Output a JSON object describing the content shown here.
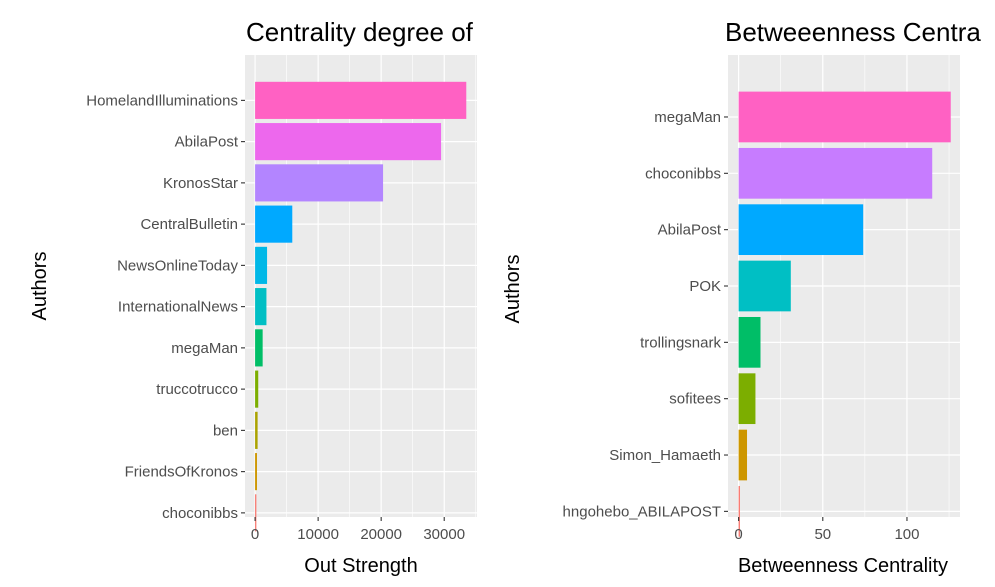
{
  "chart_data": [
    {
      "type": "bar",
      "orientation": "horizontal",
      "title": "Centrality degree of",
      "xlabel": "Out Strength",
      "ylabel": "Authors",
      "categories": [
        "HomelandIlluminations",
        "AbilaPost",
        "KronosStar",
        "CentralBulletin",
        "NewsOnlineToday",
        "InternationalNews",
        "megaMan",
        "truccotrucco",
        "ben",
        "FriendsOfKronos",
        "choconibbs"
      ],
      "values": [
        33500,
        29500,
        20300,
        5900,
        1900,
        1800,
        1200,
        500,
        400,
        300,
        200
      ],
      "xlim": [
        -1600,
        35200
      ],
      "xticks": [
        0,
        10000,
        20000,
        30000
      ],
      "xtick_labels": [
        "0",
        "10000",
        "20000",
        "30000"
      ],
      "colors": [
        "#FF61C3",
        "#ED68ED",
        "#B385FF",
        "#00A9FF",
        "#00B8E7",
        "#00BFC4",
        "#00BE67",
        "#7CAE00",
        "#ABA300",
        "#CD9600",
        "#F8766D"
      ],
      "grid": true,
      "legend": "none"
    },
    {
      "type": "bar",
      "orientation": "horizontal",
      "title": "Betweeenness Centra",
      "xlabel": "Betweenness Centrality",
      "ylabel": "Authors",
      "categories": [
        "megaMan",
        "choconibbs",
        "AbilaPost",
        "POK",
        "trollingsnark",
        "sofitees",
        "Simon_Hamaeth",
        "hngohebo_ABILAPOST"
      ],
      "values": [
        126,
        115,
        74,
        31,
        13,
        10,
        5,
        0.8
      ],
      "xlim": [
        -6.3,
        131.5
      ],
      "xticks": [
        0,
        50,
        100
      ],
      "xtick_labels": [
        "0",
        "50",
        "100"
      ],
      "colors": [
        "#FF61C3",
        "#C77CFF",
        "#00A9FF",
        "#00BFC4",
        "#00BE67",
        "#7CAE00",
        "#CD9600",
        "#F8766D"
      ],
      "grid": true,
      "legend": "none"
    }
  ]
}
